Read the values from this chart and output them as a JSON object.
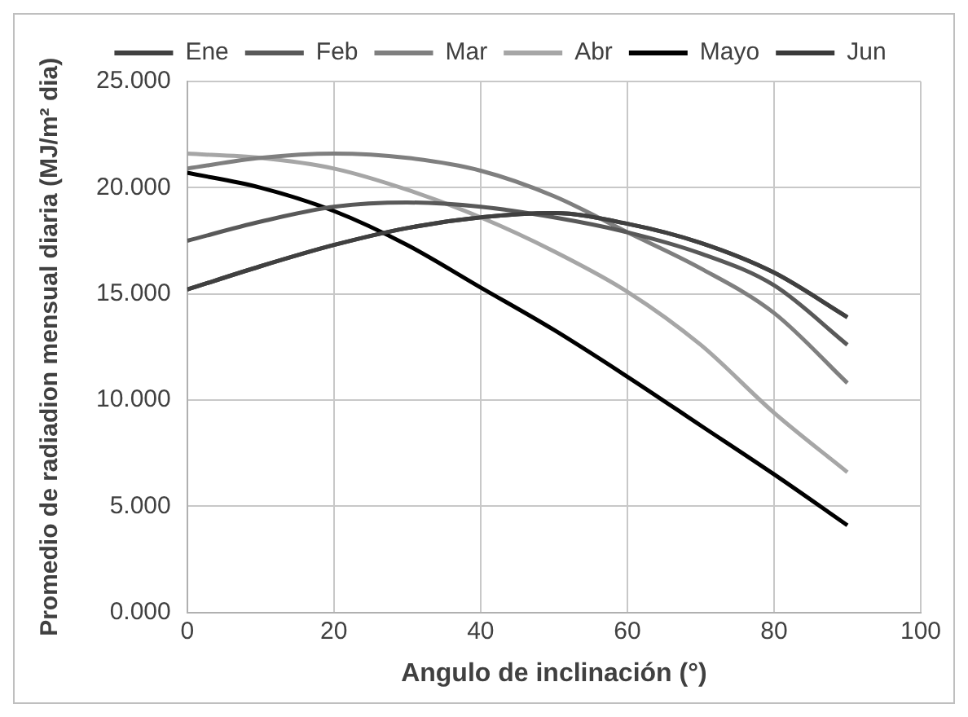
{
  "chart_data": {
    "type": "line",
    "xlabel": "Angulo de inclinación (°)",
    "ylabel": "Promedio de radiadion mensual diaria (MJ/m² dia)",
    "x": [
      0,
      10,
      20,
      30,
      40,
      50,
      60,
      70,
      80,
      90
    ],
    "series": [
      {
        "name": "Ene",
        "color": "#404040",
        "values": [
          15.2,
          16.3,
          17.3,
          18.1,
          18.6,
          18.8,
          18.3,
          17.4,
          16.0,
          13.9
        ]
      },
      {
        "name": "Feb",
        "color": "#595959",
        "values": [
          17.5,
          18.4,
          19.1,
          19.3,
          19.1,
          18.6,
          17.9,
          16.9,
          15.4,
          12.6
        ]
      },
      {
        "name": "Mar",
        "color": "#7f7f7f",
        "values": [
          20.9,
          21.4,
          21.6,
          21.4,
          20.8,
          19.6,
          17.9,
          16.2,
          14.1,
          10.8
        ]
      },
      {
        "name": "Abr",
        "color": "#a6a6a6",
        "values": [
          21.6,
          21.4,
          20.9,
          19.9,
          18.6,
          17.0,
          15.1,
          12.6,
          9.4,
          6.6
        ]
      },
      {
        "name": "Mayo",
        "color": "#000000",
        "values": [
          20.7,
          20.0,
          18.9,
          17.3,
          15.3,
          13.3,
          11.1,
          8.8,
          6.5,
          4.1
        ]
      },
      {
        "name": "Jun",
        "color": "#3a3a3a",
        "values": [
          15.2,
          16.3,
          17.3,
          18.1,
          18.6,
          18.8,
          18.3,
          17.4,
          16.0,
          13.9
        ]
      }
    ],
    "xlim": [
      0,
      100
    ],
    "xticks": [
      0,
      20,
      40,
      60,
      80,
      100
    ],
    "ylim": [
      0,
      25
    ],
    "yticks": [
      {
        "value": 0,
        "label": "0.000"
      },
      {
        "value": 5,
        "label": "5.000"
      },
      {
        "value": 10,
        "label": "10.000"
      },
      {
        "value": 15,
        "label": "15.000"
      },
      {
        "value": 20,
        "label": "20.000"
      },
      {
        "value": 25,
        "label": "25.000"
      }
    ],
    "grid": true,
    "legend": "top",
    "marker": "none",
    "line_style": "solid"
  }
}
